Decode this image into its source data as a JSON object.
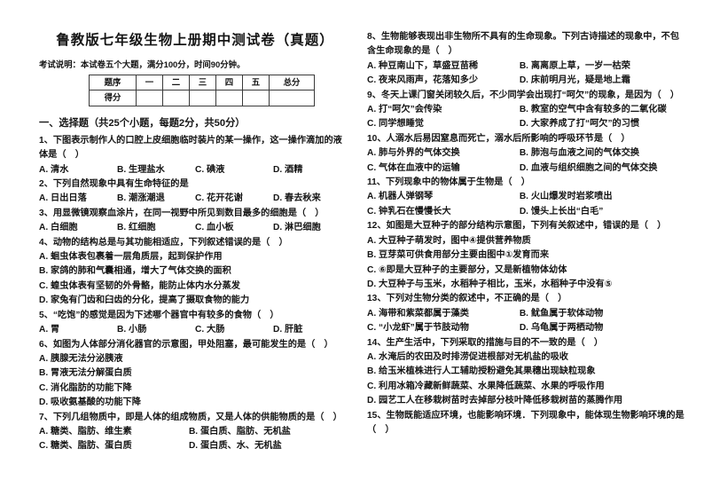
{
  "header": {
    "title": "鲁教版七年级生物上册期中测试卷（真题）",
    "exam_note": "考试说明：本试卷五个大题，满分100分，时间90分钟。",
    "section_title": "一、选择题（共25个小题，每题2分，共50分）"
  },
  "score_table": {
    "header_cells": [
      "题序",
      "一",
      "二",
      "三",
      "四",
      "五",
      "总分"
    ],
    "score_row_label": "得分",
    "empty_cell_count": 6
  },
  "questions": {
    "left": [
      {
        "stem": "1、下图表示制作人的口腔上皮细胞临时装片的某一操作，这一操作滴加的液体是（　）",
        "layout": "row",
        "options": [
          "A. 清水",
          "B. 生理盐水",
          "C. 碘液",
          "D. 酒精"
        ]
      },
      {
        "stem": "2、下列自然现象中具有生命特征的是",
        "layout": "row",
        "options": [
          "A. 日出日落",
          "B. 潮涨潮退",
          "C. 花开花谢",
          "D. 春去秋来"
        ]
      },
      {
        "stem": "3、用显微镜观察血涂片，在同一视野中所见到数目最多的细胞是（　）",
        "layout": "row",
        "options": [
          "A. 白细胞",
          "B. 红细胞",
          "C. 血小板",
          "D. 淋巴细胞"
        ]
      },
      {
        "stem": "4、动物的结构总是与其功能相适应，下列叙述错误的是（　）",
        "layout": "list",
        "options": [
          "A. 蛔虫体表包裹着一层角质层，起到保护作用",
          "B. 家鸽的肺和气囊相通，增大了气体交换的面积",
          "C. 蝗虫体表有坚韧的外骨骼，能防止体内水分蒸发",
          "D. 家兔有门齿和臼齿的分化，提高了摄取食物的能力"
        ]
      },
      {
        "stem": "5、“吃饱”的感觉是因为下述哪个器官中有较多的食物（　）",
        "layout": "row",
        "options": [
          "A. 胃",
          "B. 小肠",
          "C. 大肠",
          "D. 肝脏"
        ]
      },
      {
        "stem": "6、如图为人体部分消化器官的示意图，甲处阻塞，最可能发生的是（　）",
        "layout": "list",
        "options": [
          "A. 胰腺无法分泌胰液",
          "B. 胃液无法分解蛋白质",
          "C. 消化脂肪的功能下降",
          "D. 吸收氨基酸的功能下降"
        ]
      },
      {
        "stem": "7、下列几组物质中，即是人体的组成物质，又是人体的供能物质的是（　）",
        "layout": "grid2",
        "options": [
          "A. 糖类、脂肪、维生素",
          "B. 蛋白质、脂肪、无机盐",
          "C. 糖类、脂肪、蛋白质",
          "D. 蛋白质、水、无机盐"
        ]
      }
    ],
    "right": [
      {
        "stem": "8、生物能够表现出非生物所不具有的生命现象。下列古诗描述的现象中，不包含生命现象的是（　）",
        "layout": "grid2",
        "options": [
          "A. 种豆南山下，草盛豆苗稀",
          "B. 离离原上草，一岁一枯荣",
          "C. 夜来风雨声，花落知多少",
          "D. 床前明月光，疑是地上霜"
        ]
      },
      {
        "stem": "9、冬天上课门窗关闭较久后，不少同学会出现打“呵欠”的现象，是因为（　）",
        "layout": "grid2",
        "options": [
          "A. 打“呵欠”会传染",
          "B. 教室的空气中含有较多的二氧化碳",
          "C. 同学想睡觉",
          "D. 大家养成了打“呵欠”的习惯"
        ]
      },
      {
        "stem": "10、人溺水后易因窒息而死亡，溺水后所影响的呼吸环节是（　）",
        "layout": "grid2",
        "options": [
          "A. 肺与外界的气体交换",
          "B. 肺泡与血液之间的气体交换",
          "C. 气体在血液中的运输",
          "D. 血液与组织细胞之间的气体交换"
        ]
      },
      {
        "stem": "11、下列现象中的物体属于生物是（　）",
        "layout": "grid2",
        "options": [
          "A. 机器人弹钢琴",
          "B. 火山爆发时岩浆喷出",
          "C. 钟乳石在慢慢长大",
          "D. 馒头上长出“白毛”"
        ]
      },
      {
        "stem": "12、如图是大豆种子的部分结构示意图，下列有关叙述中，错误的是（　）",
        "layout": "list",
        "options": [
          "A. 大豆种子萌发时，图中④提供营养物质",
          "B. 豆芽菜可供食用部分主要由图中①发育而来",
          "C. ⑥即是大豆种子的主要部分，又是新植物体幼体",
          "D. 大豆种子与玉米，水稻种子相比，玉米，水稻种子中没有⑤"
        ]
      },
      {
        "stem": "13、下列对生物分类的叙述中，不正确的是（　）",
        "layout": "grid2",
        "options": [
          "A. 海带和紫菜都属于藻类",
          "B. 鱿鱼属于软体动物",
          "C. “小龙虾”属于节肢动物",
          "D. 乌龟属于两栖动物"
        ]
      },
      {
        "stem": "14、生产生活中，下列采取的措施与目的不一致的是（　）",
        "layout": "list",
        "options": [
          "A. 水淹后的农田及时排涝促进根部对无机盐的吸收",
          "B. 给玉米植株进行人工辅助授粉避免其果穗出现缺粒现象",
          "C. 利用冰箱冷藏新鲜蔬菜、水果降低蔬菜、水果的呼吸作用",
          "D. 园艺工人在移栽树苗时去掉部分枝叶降低移栽树苗的蒸腾作用"
        ]
      },
      {
        "stem": "15、生物既能适应环境，也能影响环境．下列现象中，能体现生物影响环境的是（　）",
        "layout": "list",
        "options": []
      }
    ]
  }
}
